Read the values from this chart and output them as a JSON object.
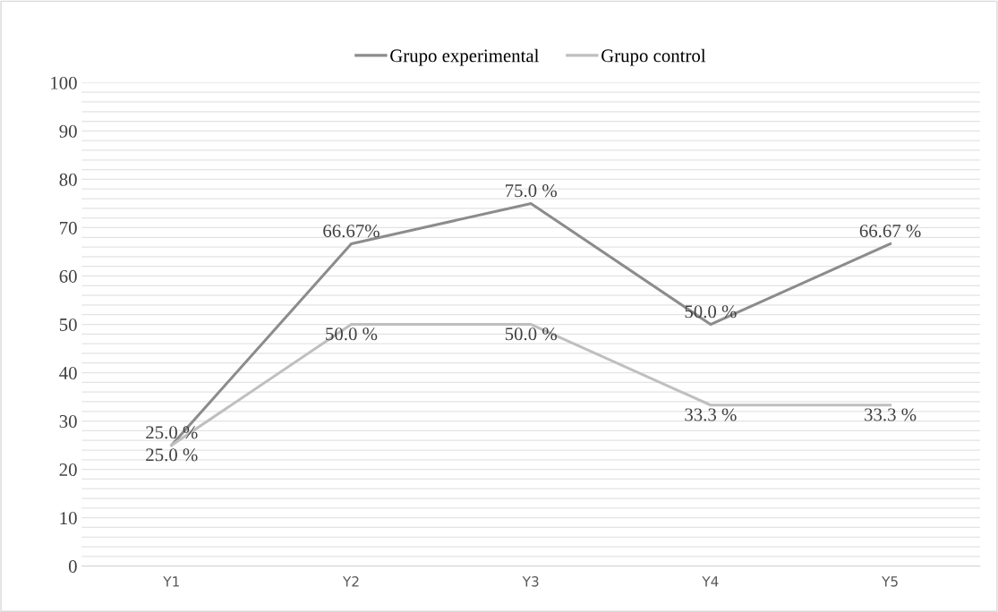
{
  "chart_data": {
    "type": "line",
    "categories": [
      "Y1",
      "Y2",
      "Y3",
      "Y4",
      "Y5"
    ],
    "series": [
      {
        "name": "Grupo experimental",
        "color": "#8c8c8c",
        "values": [
          25,
          66.67,
          75,
          50,
          66.67
        ],
        "value_labels": [
          "25.0 %",
          "66.67%",
          "75.0 %",
          "50.0 %",
          "66.67 %"
        ]
      },
      {
        "name": "Grupo control",
        "color": "#bfbfbf",
        "values": [
          25,
          50,
          50,
          33.3,
          33.3
        ],
        "value_labels": [
          "25.0 %",
          "50.0 %",
          "50.0 %",
          "33.3 %",
          "33.3 %"
        ]
      }
    ],
    "ylim": [
      0,
      100
    ],
    "yticks": [
      0,
      {
        "value": 2,
        "label": null
      },
      {
        "value": 4,
        "label": null
      },
      {
        "value": 6,
        "label": null
      },
      {
        "value": 8,
        "label": null
      },
      10,
      {
        "value": 12,
        "label": null
      },
      {
        "value": 14,
        "label": null
      },
      {
        "value": 16,
        "label": null
      },
      {
        "value": 18,
        "label": null
      },
      20,
      {
        "value": 22,
        "label": null
      },
      {
        "value": 24,
        "label": null
      },
      {
        "value": 26,
        "label": null
      },
      {
        "value": 28,
        "label": null
      },
      30,
      {
        "value": 32,
        "label": null
      },
      {
        "value": 34,
        "label": null
      },
      {
        "value": 36,
        "label": null
      },
      {
        "value": 38,
        "label": null
      },
      40,
      {
        "value": 42,
        "label": null
      },
      {
        "value": 44,
        "label": null
      },
      {
        "value": 46,
        "label": null
      },
      {
        "value": 48,
        "label": null
      },
      50,
      {
        "value": 52,
        "label": null
      },
      {
        "value": 54,
        "label": null
      },
      {
        "value": 56,
        "label": null
      },
      {
        "value": 58,
        "label": null
      },
      60,
      {
        "value": 62,
        "label": null
      },
      {
        "value": 64,
        "label": null
      },
      {
        "value": 66,
        "label": null
      },
      {
        "value": 68,
        "label": null
      },
      70,
      {
        "value": 72,
        "label": null
      },
      {
        "value": 74,
        "label": null
      },
      {
        "value": 76,
        "label": null
      },
      {
        "value": 78,
        "label": null
      },
      80,
      {
        "value": 82,
        "label": null
      },
      {
        "value": 84,
        "label": null
      },
      {
        "value": 86,
        "label": null
      },
      {
        "value": 88,
        "label": null
      },
      90,
      {
        "value": 92,
        "label": null
      },
      {
        "value": 94,
        "label": null
      },
      {
        "value": 96,
        "label": null
      },
      {
        "value": 98,
        "label": null
      },
      100
    ],
    "grid": "y",
    "legend": "top",
    "marker": "none",
    "line_style": "solid"
  }
}
